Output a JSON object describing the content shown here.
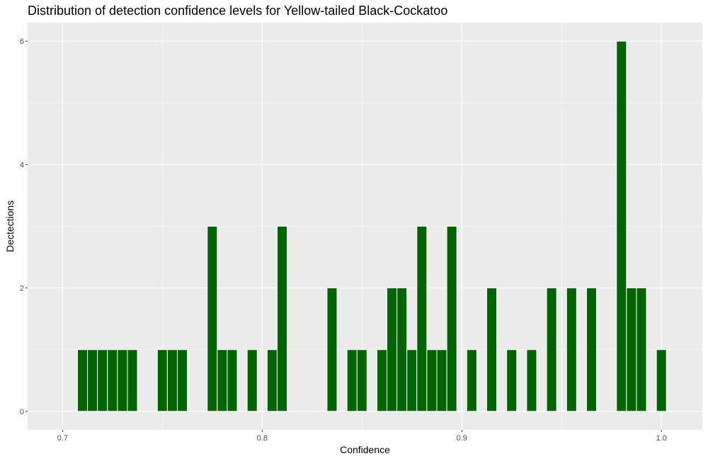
{
  "chart_data": {
    "type": "bar",
    "title": "Distribution of detection confidence levels for Yellow-tailed Black-Cockatoo",
    "xlabel": "Confidence",
    "ylabel": "Dectections",
    "xlim": [
      0.6825,
      1.0205
    ],
    "ylim": [
      -0.3,
      6.3
    ],
    "bin_width": 0.005,
    "x_ticks": [
      0.7,
      0.8,
      0.9,
      1.0
    ],
    "x_tick_labels": [
      "0.7",
      "0.8",
      "0.9",
      "1.0"
    ],
    "y_ticks": [
      0,
      2,
      4,
      6
    ],
    "y_tick_labels": [
      "0",
      "2",
      "4",
      "6"
    ],
    "grid": true,
    "bar_color": "#006400",
    "panel_color": "#ebebeb",
    "x": [
      0.71,
      0.715,
      0.72,
      0.725,
      0.73,
      0.735,
      0.75,
      0.755,
      0.76,
      0.775,
      0.78,
      0.785,
      0.795,
      0.805,
      0.81,
      0.835,
      0.845,
      0.85,
      0.86,
      0.865,
      0.87,
      0.875,
      0.88,
      0.885,
      0.89,
      0.895,
      0.905,
      0.915,
      0.925,
      0.935,
      0.945,
      0.955,
      0.965,
      0.98,
      0.985,
      0.99,
      1.0
    ],
    "values": [
      1,
      1,
      1,
      1,
      1,
      1,
      1,
      1,
      1,
      3,
      1,
      1,
      1,
      1,
      3,
      2,
      1,
      1,
      1,
      2,
      2,
      1,
      3,
      1,
      1,
      3,
      1,
      2,
      1,
      1,
      2,
      2,
      2,
      6,
      2,
      2,
      1
    ]
  }
}
